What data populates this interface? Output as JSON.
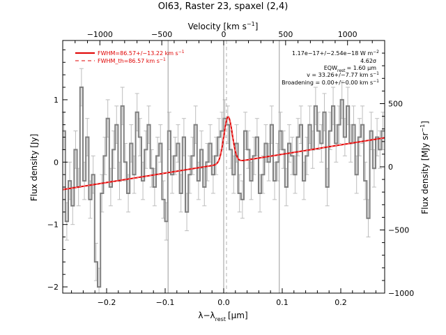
{
  "chart_data": {
    "type": "line",
    "title": "OI63, Raster 23, spaxel (2,4)",
    "xlabel": "λ−λ",
    "xlabel_sub": "rest",
    "xlabel_unit": "[μm]",
    "ylabel": "Flux density [Jy]",
    "ylabel_right": "Flux density [MJy sr",
    "ylabel_right_sup": "−1",
    "ylabel_right_close": "]",
    "top_axis_label": "Velocity [km s",
    "top_axis_label_sup": "−1",
    "top_axis_label_close": "]",
    "xlim": [
      -0.275,
      0.275
    ],
    "ylim": [
      -2.1,
      1.95
    ],
    "top_xlim": [
      -1300,
      1300
    ],
    "right_ylim": [
      -1000,
      1000
    ],
    "x_ticks": [
      -0.2,
      -0.1,
      0.0,
      0.1,
      0.2
    ],
    "x_tick_labels": [
      "−0.2",
      "−0.1",
      "0.0",
      "0.1",
      "0.2"
    ],
    "y_ticks": [
      -2,
      -1,
      0,
      1
    ],
    "y_tick_labels": [
      "−2",
      "−1",
      "0",
      "1"
    ],
    "top_ticks": [
      -1000,
      -500,
      0,
      500,
      1000
    ],
    "top_tick_labels": [
      "−1000",
      "−500",
      "0",
      "500",
      "1000"
    ],
    "right_ticks": [
      -1000,
      -500,
      0,
      500
    ],
    "right_tick_labels": [
      "−1000",
      "−500",
      "0",
      "500"
    ],
    "vertical_lines": [
      -0.095,
      0.095
    ],
    "dashed_center": 0.0,
    "legend_position": "top-left",
    "legend": [
      {
        "label": "FWHM=86.57+/−13.22 km s",
        "sup": "−1",
        "style": "solid"
      },
      {
        "label": "FWHM_th=86.57 km s",
        "sup": "−1",
        "style": "dashed"
      }
    ],
    "annotations": [
      "1.17e−17+/−2.54e−18 W m",
      "4.62σ",
      "EQW",
      "= 1.60 μm",
      "v = 33.26+/−7.77 km s",
      "Broadening = 0.00+/−0.00 km s"
    ],
    "fit": {
      "continuum_start": [
        -0.275,
        -0.44
      ],
      "continuum_end": [
        0.275,
        0.39
      ],
      "peak_center": 0.0075,
      "peak_amplitude": 0.74,
      "peak_sigma": 0.0072
    },
    "series": [
      {
        "x": [
          -0.273,
          -0.268,
          -0.263,
          -0.258,
          -0.253,
          -0.248,
          -0.243,
          -0.238,
          -0.233,
          -0.228,
          -0.223,
          -0.218,
          -0.213,
          -0.208,
          -0.203,
          -0.198,
          -0.193,
          -0.188,
          -0.183,
          -0.178,
          -0.173,
          -0.168,
          -0.163,
          -0.158,
          -0.153,
          -0.148,
          -0.143,
          -0.138,
          -0.133,
          -0.128,
          -0.123,
          -0.118,
          -0.113,
          -0.108,
          -0.103,
          -0.098,
          -0.093,
          -0.088,
          -0.083,
          -0.078,
          -0.073,
          -0.068,
          -0.063,
          -0.058,
          -0.053,
          -0.048,
          -0.043,
          -0.038,
          -0.033,
          -0.028,
          -0.023,
          -0.018,
          -0.013,
          -0.008,
          -0.003,
          0.002,
          0.007,
          0.012,
          0.017,
          0.022,
          0.027,
          0.032,
          0.037,
          0.042,
          0.047,
          0.052,
          0.057,
          0.062,
          0.067,
          0.072,
          0.077,
          0.082,
          0.087,
          0.092,
          0.097,
          0.102,
          0.107,
          0.112,
          0.117,
          0.122,
          0.127,
          0.132,
          0.137,
          0.142,
          0.147,
          0.152,
          0.157,
          0.162,
          0.167,
          0.172,
          0.177,
          0.182,
          0.187,
          0.192,
          0.197,
          0.202,
          0.207,
          0.212,
          0.217,
          0.222,
          0.227,
          0.232,
          0.237,
          0.242,
          0.247,
          0.252,
          0.257,
          0.262,
          0.267,
          0.272
        ],
        "values": [
          0.5,
          -0.95,
          -0.3,
          -0.7,
          0.2,
          -0.4,
          1.2,
          -0.3,
          0.4,
          -0.6,
          -0.2,
          -1.6,
          -2.0,
          -0.5,
          0.1,
          0.7,
          -0.4,
          0.2,
          0.6,
          -0.3,
          0.9,
          0.0,
          -0.5,
          0.3,
          -0.2,
          0.8,
          0.4,
          -0.3,
          0.2,
          0.6,
          -0.1,
          -0.4,
          0.1,
          0.3,
          -0.6,
          -0.95,
          0.5,
          -0.2,
          0.1,
          0.3,
          -0.5,
          0.4,
          -0.8,
          -0.2,
          0.1,
          0.6,
          -0.3,
          0.2,
          -0.4,
          0.0,
          0.3,
          -0.2,
          0.1,
          0.4,
          0.5,
          0.7,
          0.6,
          0.2,
          -0.2,
          0.3,
          -0.5,
          -0.6,
          0.5,
          0.2,
          -0.3,
          0.1,
          0.4,
          -0.5,
          -0.2,
          0.3,
          0.0,
          0.6,
          -0.3,
          0.0,
          0.5,
          0.2,
          -0.4,
          0.3,
          0.1,
          -0.2,
          0.4,
          0.6,
          -0.3,
          0.1,
          0.6,
          0.2,
          0.9,
          0.5,
          0.3,
          0.8,
          -0.4,
          0.5,
          0.9,
          0.3,
          0.6,
          1.0,
          0.4,
          0.9,
          0.3,
          0.6,
          -0.2,
          0.4,
          0.6,
          -0.3,
          -0.9,
          0.5,
          -0.1,
          0.4,
          0.2,
          0.5
        ],
        "error": 0.3
      }
    ]
  }
}
